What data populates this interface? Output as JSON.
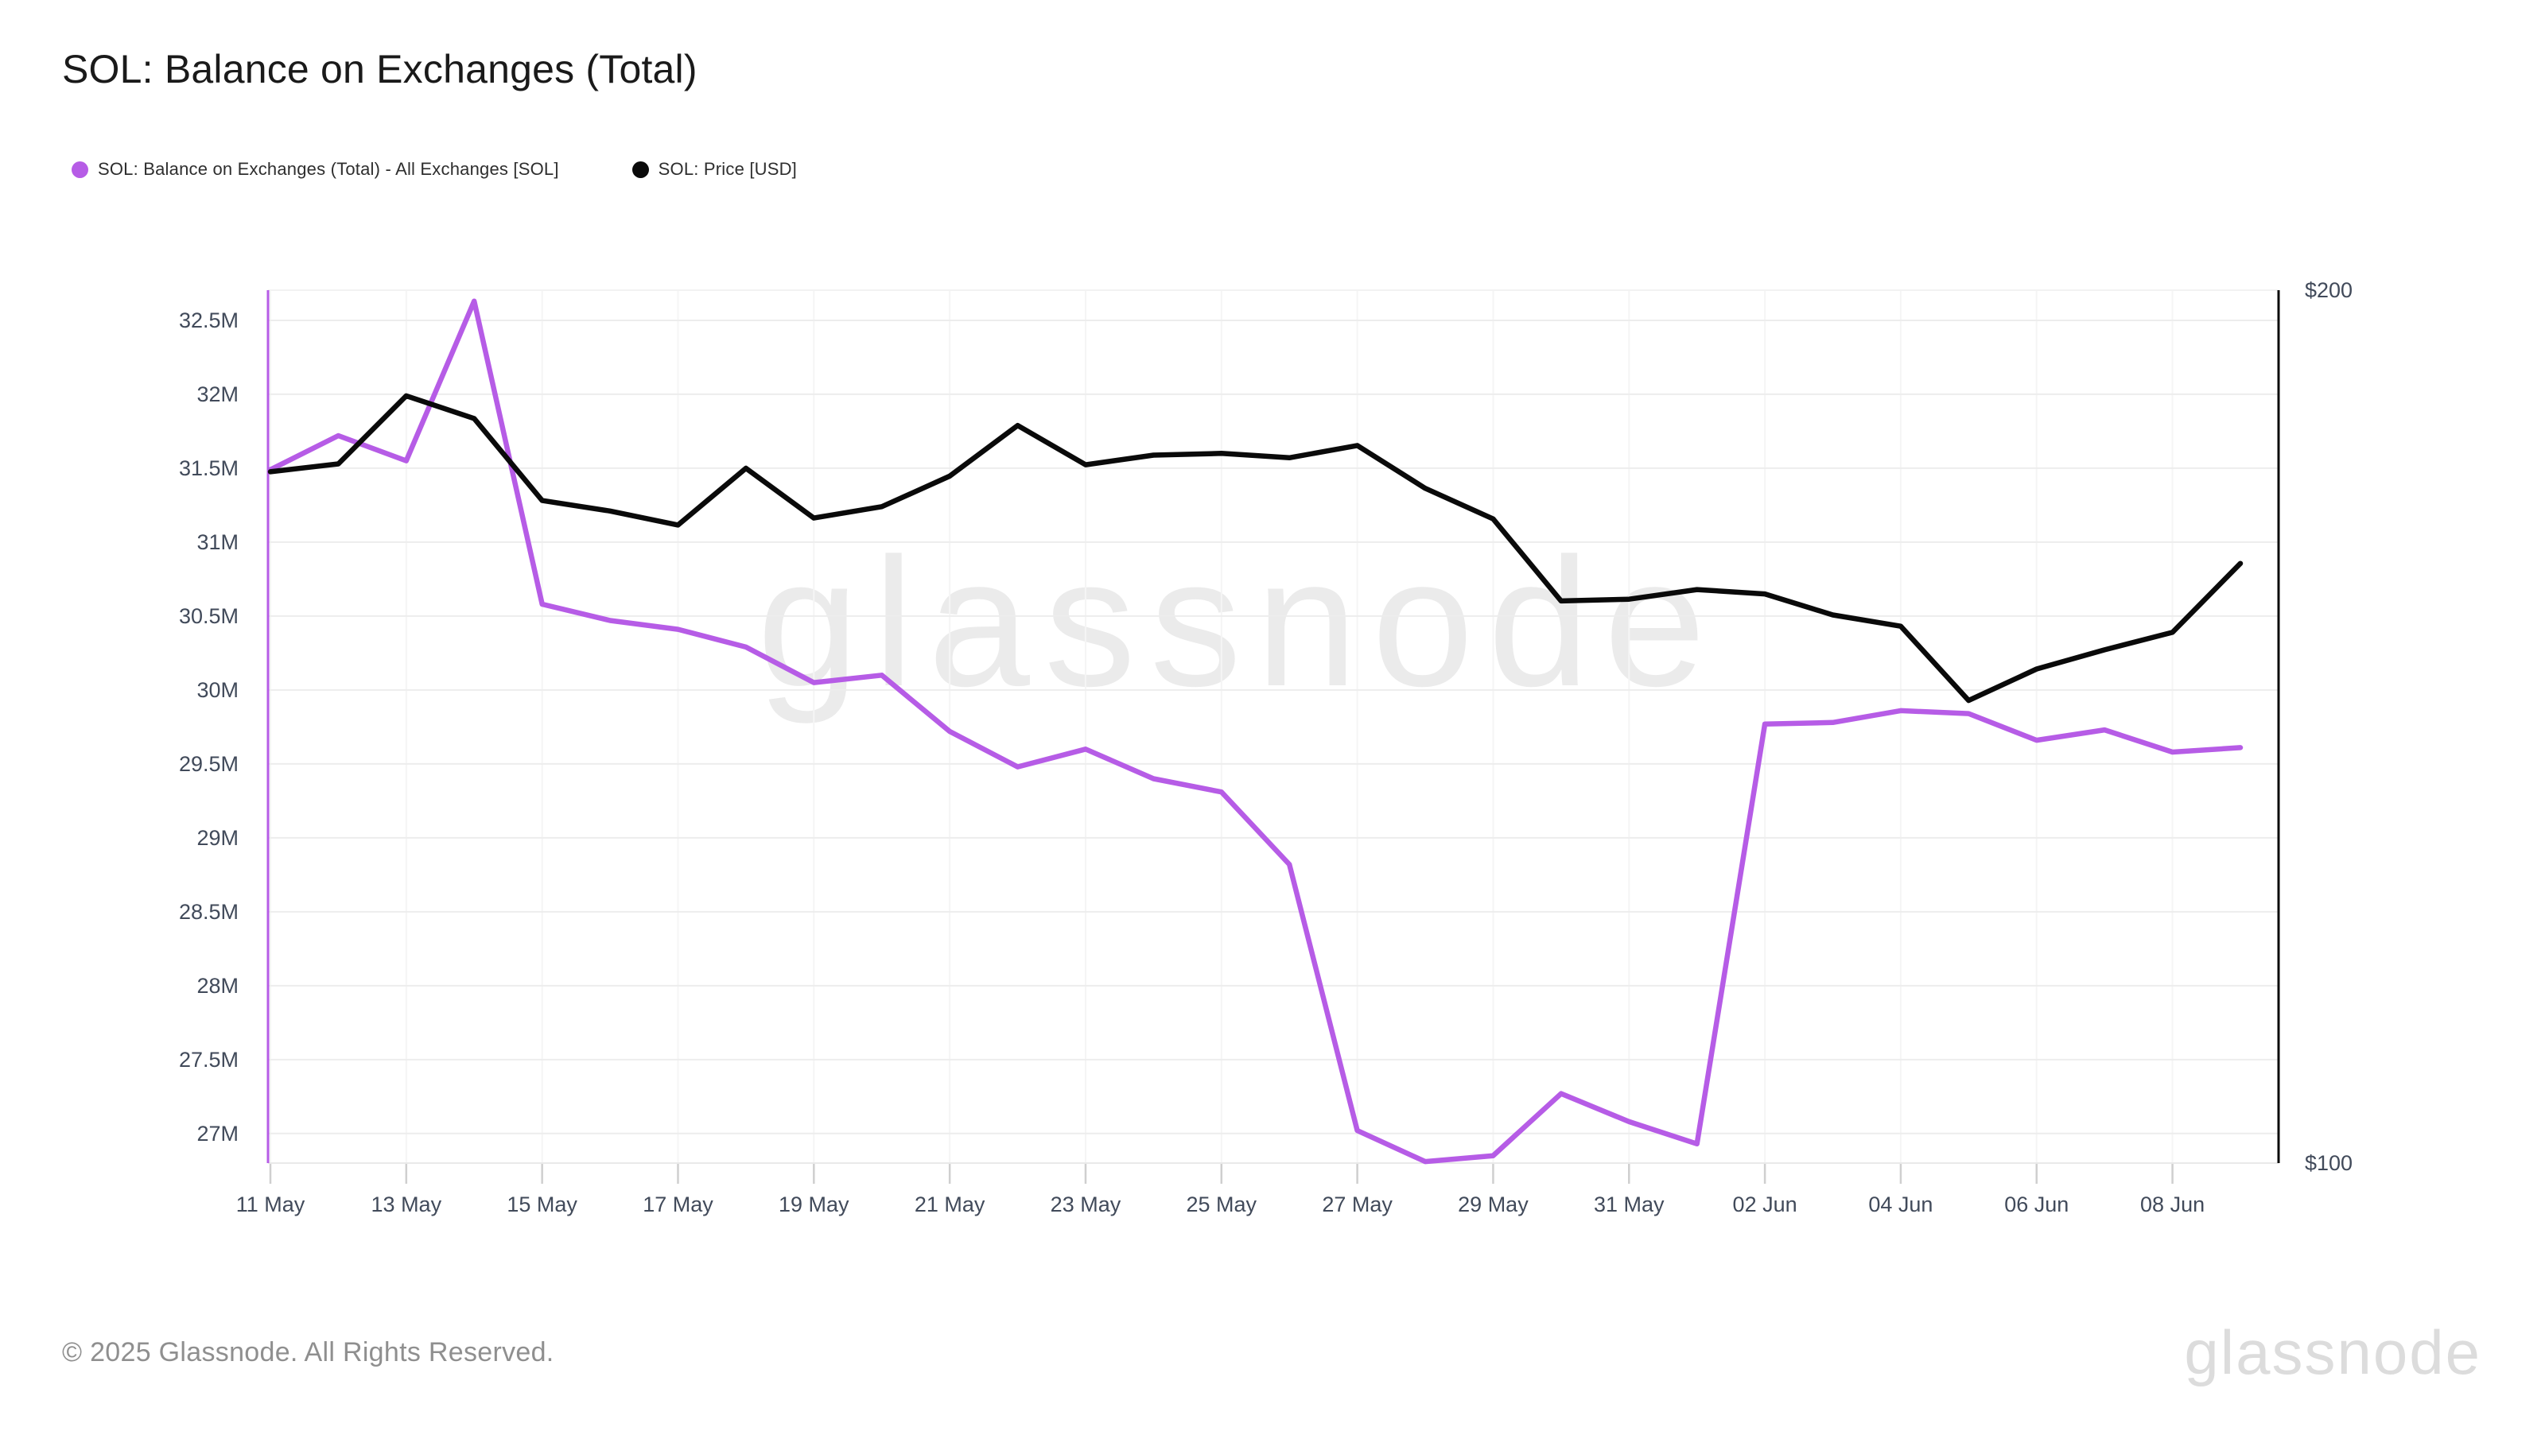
{
  "header": {
    "title": "SOL: Balance on Exchanges (Total)"
  },
  "watermark": {
    "text": "glassnode"
  },
  "footer": {
    "copyright": "© 2025 Glassnode. All Rights Reserved.",
    "brand": "glassnode"
  },
  "chart_data": {
    "type": "line",
    "title": "SOL: Balance on Exchanges (Total)",
    "legend_position": "top-left",
    "grid": true,
    "background": "#ffffff",
    "gridline_color": "#ededed",
    "x": [
      "11 May",
      "12 May",
      "13 May",
      "14 May",
      "15 May",
      "16 May",
      "17 May",
      "18 May",
      "19 May",
      "20 May",
      "21 May",
      "22 May",
      "23 May",
      "24 May",
      "25 May",
      "26 May",
      "27 May",
      "28 May",
      "29 May",
      "30 May",
      "31 May",
      "01 Jun",
      "02 Jun",
      "03 Jun",
      "04 Jun",
      "05 Jun",
      "06 Jun",
      "07 Jun",
      "08 Jun",
      "09 Jun"
    ],
    "x_tick_labels": [
      "11 May",
      "13 May",
      "15 May",
      "17 May",
      "19 May",
      "21 May",
      "23 May",
      "25 May",
      "27 May",
      "29 May",
      "31 May",
      "02 Jun",
      "04 Jun",
      "06 Jun",
      "08 Jun"
    ],
    "left_axis": {
      "unit": "SOL (millions)",
      "min": 26.8,
      "max": 32.704,
      "tick_values": [
        32.5,
        32,
        31.5,
        31,
        30.5,
        30,
        29.5,
        29,
        28.5,
        28,
        27.5,
        27
      ],
      "tick_labels": [
        "32.5M",
        "32M",
        "31.5M",
        "31M",
        "30.5M",
        "30M",
        "29.5M",
        "29M",
        "28.5M",
        "28M",
        "27.5M",
        "27M"
      ],
      "axis_line_color": "#b65ce6"
    },
    "right_axis": {
      "unit": "USD",
      "min": 100,
      "max": 200,
      "tick_values": [
        200,
        100
      ],
      "tick_labels": [
        "$200",
        "$100"
      ],
      "axis_line_color": "#0a0a0a"
    },
    "series": [
      {
        "name": "SOL: Balance on Exchanges (Total) - All Exchanges [SOL]",
        "axis": "left",
        "color": "#b65ce6",
        "values": [
          31.49,
          31.72,
          31.55,
          32.63,
          30.58,
          30.47,
          30.41,
          30.29,
          30.05,
          30.1,
          29.72,
          29.48,
          29.6,
          29.4,
          29.31,
          28.82,
          27.02,
          26.81,
          26.85,
          27.27,
          27.08,
          26.93,
          29.77,
          29.78,
          29.86,
          29.84,
          29.66,
          29.73,
          29.58,
          29.61
        ]
      },
      {
        "name": "SOL: Price [USD]",
        "axis": "right",
        "color": "#0a0a0a",
        "values": [
          179.2,
          180.1,
          187.9,
          185.3,
          175.9,
          174.7,
          173.1,
          179.6,
          173.9,
          175.2,
          178.7,
          184.5,
          180.0,
          181.1,
          181.3,
          180.8,
          182.2,
          177.3,
          173.8,
          164.4,
          164.6,
          165.7,
          165.2,
          162.8,
          161.5,
          153.0,
          156.6,
          158.8,
          160.8,
          168.7
        ]
      }
    ]
  }
}
